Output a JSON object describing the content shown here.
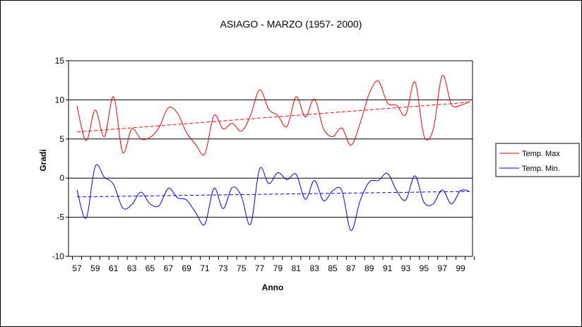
{
  "chart_data": {
    "type": "line",
    "title": "ASIAGO - MARZO (1957- 2000)",
    "xlabel": "Anno",
    "ylabel": "Gradi",
    "ylim": [
      -10,
      15
    ],
    "yticks": [
      -10,
      -5,
      0,
      5,
      10,
      15
    ],
    "xtick_labels": [
      "57",
      "59",
      "61",
      "63",
      "65",
      "67",
      "69",
      "71",
      "73",
      "75",
      "77",
      "79",
      "81",
      "83",
      "85",
      "87",
      "89",
      "91",
      "93",
      "95",
      "97",
      "99"
    ],
    "grid": true,
    "legend_position": "right",
    "x": [
      57,
      58,
      59,
      60,
      61,
      62,
      63,
      64,
      65,
      66,
      67,
      68,
      69,
      70,
      71,
      72,
      73,
      74,
      75,
      76,
      77,
      78,
      79,
      80,
      81,
      82,
      83,
      84,
      85,
      86,
      87,
      88,
      89,
      90,
      91,
      92,
      93,
      94,
      95,
      96,
      97,
      98,
      99,
      100
    ],
    "series": [
      {
        "name": "Temp. Max",
        "color": "#ff0000",
        "values": [
          9.2,
          4.8,
          8.7,
          5.3,
          10.4,
          3.3,
          6.3,
          5.0,
          5.2,
          6.5,
          9.0,
          8.3,
          5.8,
          4.3,
          3.1,
          8.0,
          6.3,
          7.0,
          6.0,
          8.0,
          11.3,
          8.8,
          8.0,
          6.6,
          10.4,
          7.8,
          10.1,
          6.3,
          5.3,
          6.4,
          4.2,
          7.0,
          10.8,
          12.4,
          9.6,
          9.3,
          8.1,
          12.3,
          5.4,
          6.2,
          13.1,
          9.4,
          9.3,
          9.8
        ],
        "trend": [
          5.9,
          9.7
        ]
      },
      {
        "name": "Temp. Min.",
        "color": "#0000ff",
        "values": [
          -1.5,
          -5.1,
          1.5,
          0.1,
          -0.8,
          -3.8,
          -3.4,
          -1.8,
          -3.3,
          -3.5,
          -1.3,
          -2.5,
          -2.8,
          -4.4,
          -5.9,
          -1.3,
          -3.9,
          -1.2,
          -2.3,
          -5.9,
          1.2,
          -0.7,
          0.7,
          -0.2,
          0.5,
          -2.7,
          -0.3,
          -2.9,
          -1.6,
          -1.6,
          -6.7,
          -2.9,
          -0.5,
          -0.3,
          0.6,
          -1.6,
          -2.8,
          0.3,
          -3.1,
          -3.3,
          -1.5,
          -3.3,
          -1.6,
          -1.7
        ],
        "trend": [
          -2.4,
          -1.7
        ]
      }
    ]
  }
}
